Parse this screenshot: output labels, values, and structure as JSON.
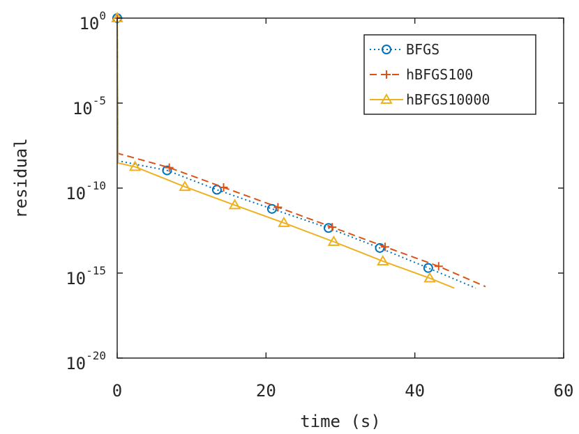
{
  "chart_data": {
    "type": "line",
    "title": "",
    "xlabel": "time (s)",
    "ylabel": "residual",
    "xlim": [
      0,
      60
    ],
    "ylim": [
      1e-20,
      1
    ],
    "yscale": "log",
    "xticks": [
      0,
      20,
      40,
      60
    ],
    "xtick_labels": [
      "0",
      "20",
      "40",
      "60"
    ],
    "yticks": [
      1e-20,
      1e-15,
      1e-10,
      1e-05,
      1
    ],
    "ytick_labels": [
      {
        "base": "10",
        "exp": "-20"
      },
      {
        "base": "10",
        "exp": "-15"
      },
      {
        "base": "10",
        "exp": "-10"
      },
      {
        "base": "10",
        "exp": "-5"
      },
      {
        "base": "10",
        "exp": "0"
      }
    ],
    "grid": false,
    "legend_position": "top-right",
    "series": [
      {
        "name": "BFGS",
        "color": "#0072BD",
        "line_style": "dotted",
        "marker": "circle",
        "x": [
          0,
          0.1,
          6.7,
          13.4,
          20.8,
          28.4,
          35.3,
          41.8,
          48.2
        ],
        "y": [
          1,
          4e-09,
          1.1e-09,
          8e-11,
          6e-12,
          4.5e-13,
          3e-14,
          2e-15,
          1.3e-16
        ],
        "markers_x": [
          0,
          6.7,
          13.4,
          20.8,
          28.4,
          35.3,
          41.8
        ],
        "markers_y": [
          1,
          1.1e-09,
          8e-11,
          6e-12,
          4.5e-13,
          3e-14,
          2e-15
        ]
      },
      {
        "name": "hBFGS100",
        "color": "#D95319",
        "line_style": "dashed",
        "marker": "plus",
        "x": [
          0,
          0.1,
          7.0,
          14.3,
          21.6,
          28.9,
          36.0,
          43.2,
          49.5
        ],
        "y": [
          1,
          1.1e-08,
          1.6e-09,
          1.1e-10,
          7.5e-12,
          5e-13,
          3.5e-14,
          2.5e-15,
          1.6e-16
        ],
        "markers_x": [
          0,
          7.0,
          14.3,
          21.6,
          28.9,
          36.0,
          43.2
        ],
        "markers_y": [
          1,
          1.6e-09,
          1.1e-10,
          7.5e-12,
          5e-13,
          3.5e-14,
          2.5e-15
        ]
      },
      {
        "name": "hBFGS10000",
        "color": "#EDB120",
        "line_style": "solid",
        "marker": "triangle",
        "x": [
          0,
          0.1,
          2.4,
          9.1,
          15.8,
          22.4,
          29.1,
          35.7,
          42.0,
          45.3
        ],
        "y": [
          1,
          3e-09,
          1.8e-09,
          1.2e-10,
          1e-11,
          9e-13,
          7e-14,
          5e-15,
          5e-16,
          1.3e-16
        ],
        "markers_x": [
          0,
          2.4,
          9.1,
          15.8,
          22.4,
          29.1,
          35.7,
          42.0
        ],
        "markers_y": [
          1,
          1.8e-09,
          1.2e-10,
          1e-11,
          9e-13,
          7e-14,
          5e-15,
          5e-16
        ]
      }
    ]
  }
}
